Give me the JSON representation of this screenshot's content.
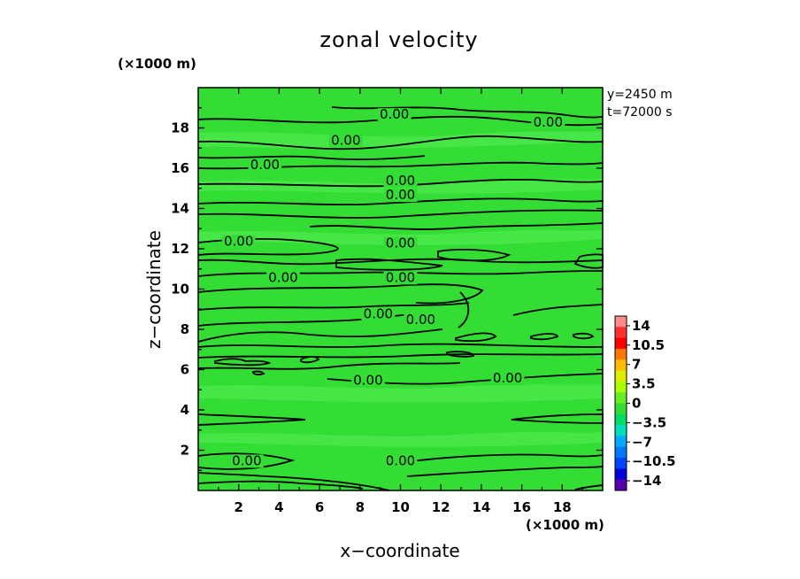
{
  "chart_data": {
    "type": "heatmap",
    "title": "zonal velocity",
    "xlabel": "x−coordinate",
    "ylabel": "z−coordinate",
    "x_unit": "(×1000 m)",
    "y_unit": "(×1000 m)",
    "xlim": [
      0,
      20
    ],
    "ylim": [
      0,
      20
    ],
    "x_ticks": [
      2,
      4,
      6,
      8,
      10,
      12,
      14,
      16,
      18
    ],
    "y_ticks": [
      2,
      4,
      6,
      8,
      10,
      12,
      14,
      16,
      18
    ],
    "info_lines": [
      "y=2450 m",
      "t=72000 s"
    ],
    "field_color": "#33dd33",
    "colorbar": {
      "labels": [
        "14",
        "10.5",
        "7",
        "3.5",
        "0",
        "−3.5",
        "−7",
        "−10.5",
        "−14"
      ],
      "colors": [
        "#ff8c8c",
        "#ff3030",
        "#ff0000",
        "#ff7700",
        "#ffbb00",
        "#ddee00",
        "#aaff00",
        "#66ee22",
        "#33dd33",
        "#00dd66",
        "#00ddbb",
        "#00aaff",
        "#0077ff",
        "#0044ff",
        "#0000dd",
        "#5500aa"
      ]
    },
    "contour_level": 0,
    "contour_labels": [
      {
        "text": "0.00",
        "x": 9.7,
        "z": 18.5
      },
      {
        "text": "0.00",
        "x": 17.3,
        "z": 18.1
      },
      {
        "text": "0.00",
        "x": 7.3,
        "z": 17.2
      },
      {
        "text": "0.00",
        "x": 3.3,
        "z": 16.0
      },
      {
        "text": "0.00",
        "x": 10.0,
        "z": 15.2
      },
      {
        "text": "0.00",
        "x": 10.0,
        "z": 14.5
      },
      {
        "text": "0.00",
        "x": 10.0,
        "z": 12.1
      },
      {
        "text": "0.00",
        "x": 2.0,
        "z": 12.2
      },
      {
        "text": "0.00",
        "x": 4.2,
        "z": 10.4
      },
      {
        "text": "0.00",
        "x": 10.0,
        "z": 10.4
      },
      {
        "text": "0.00",
        "x": 8.9,
        "z": 8.6
      },
      {
        "text": "0.00",
        "x": 11.0,
        "z": 8.3
      },
      {
        "text": "0.00",
        "x": 8.4,
        "z": 5.3
      },
      {
        "text": "0.00",
        "x": 15.3,
        "z": 5.4
      },
      {
        "text": "0.00",
        "x": 2.4,
        "z": 1.3
      },
      {
        "text": "0.00",
        "x": 10.0,
        "z": 1.3
      }
    ]
  }
}
